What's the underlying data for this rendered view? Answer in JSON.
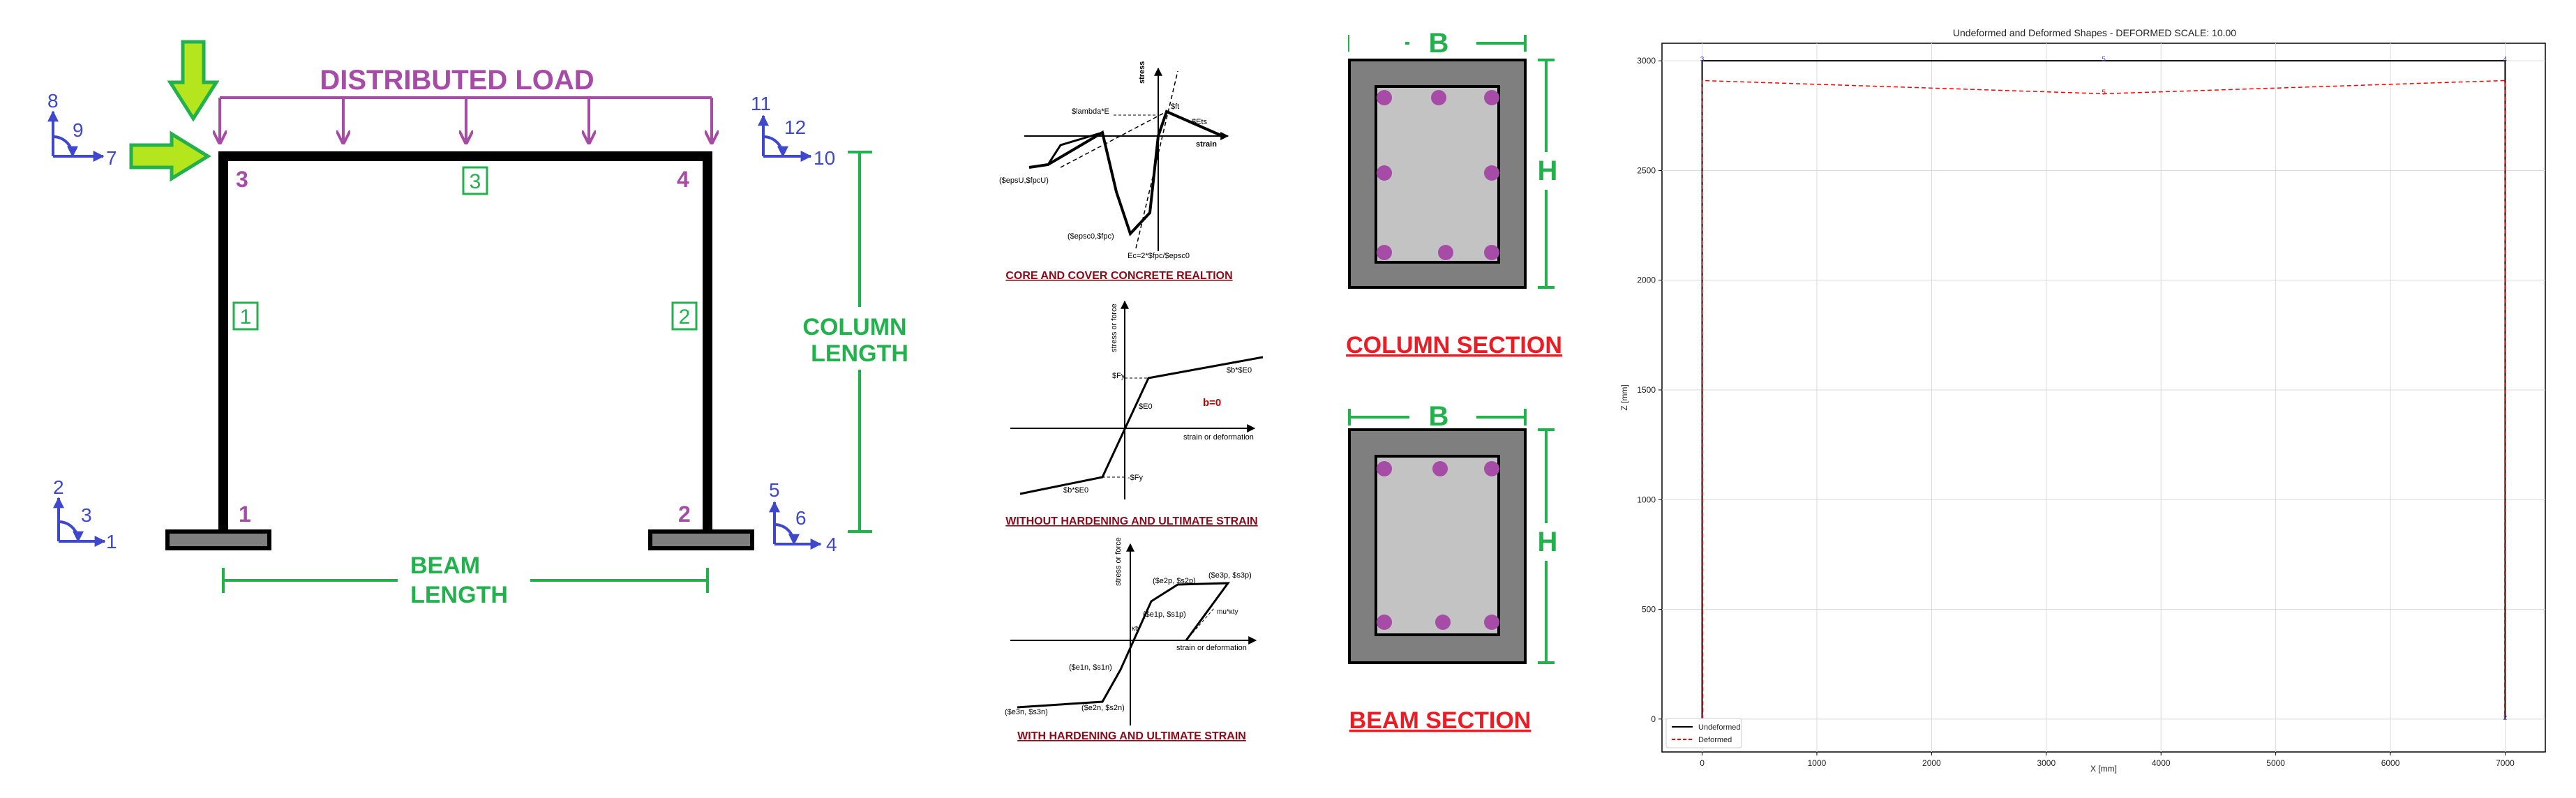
{
  "colors": {
    "purple": "#a64ca6",
    "green": "#22b14c",
    "blue": "#3f48cc",
    "red": "#c00000",
    "darkred": "#8b0a1a",
    "arrow_fill": "#b5e61d",
    "arrow_stroke": "#22b14c",
    "rebar": "#a64ca6",
    "cover": "#7f7f7f",
    "core": "#c3c3c3"
  },
  "frame": {
    "load_label": "DISTRIBUTED LOAD",
    "column_length_line1": "COLUMN",
    "column_length_line2": "LENGTH",
    "beam_length_line1": "BEAM",
    "beam_length_line2": "LENGTH",
    "nodes": [
      "1",
      "2",
      "3",
      "4"
    ],
    "elements": [
      "1",
      "2",
      "3"
    ],
    "dofs": {
      "n1": [
        "1",
        "2",
        "3"
      ],
      "n2": [
        "4",
        "5",
        "6"
      ],
      "n3": [
        "7",
        "8",
        "9"
      ],
      "n4": [
        "10",
        "11",
        "12"
      ]
    }
  },
  "materials": {
    "concrete": {
      "caption": "CORE AND COVER CONCRETE REALTION",
      "labels": {
        "stress": "stress",
        "strain": "strain",
        "lambda": "$lambda*E",
        "ft": "$ft",
        "ets": "$Ets",
        "epsu": "($epsU,$fpcU)",
        "epsc0": "($epsc0,$fpc)",
        "ec": "Ec=2*$fpc/$epsc0"
      }
    },
    "steel_nh": {
      "caption": "WITHOUT HARDENING AND ULTIMATE STRAIN",
      "labels": {
        "ylabel": "stress or force",
        "xlabel": "strain or deformation",
        "fy_pos": "$Fy",
        "fy_neg": "-$Fy",
        "e0": "$E0",
        "be0_top": "$b*$E0",
        "be0_bot": "$b*$E0",
        "b_eq": "b=0"
      }
    },
    "steel_h": {
      "caption": "WITH HARDENING AND ULTIMATE STRAIN",
      "labels": {
        "ylabel": "stress or force",
        "xlabel": "strain or deformation",
        "p1": "($e1p, $s1p)",
        "p2": "($e2p, $s2p)",
        "p3": "($e3p, $s3p)",
        "n1": "($e1n, $s1n)",
        "n2": "($e2n, $s2n)",
        "n3": "($e3n, $s3n)",
        "ky": "κty",
        "mu": "mu*κty"
      }
    }
  },
  "sections": {
    "column": {
      "b": "B",
      "h": "H",
      "title": "COLUMN SECTION"
    },
    "beam": {
      "b": "B",
      "h": "H",
      "title": "BEAM SECTION"
    }
  },
  "chart_data": {
    "type": "line",
    "title": "Undeformed and Deformed Shapes - DEFORMED SCALE: 10.00",
    "xlabel": "X [mm]",
    "ylabel": "Z [mm]",
    "xlim": [
      -350,
      7350
    ],
    "ylim": [
      -150,
      3080
    ],
    "x_ticks": [
      0,
      1000,
      2000,
      3000,
      4000,
      5000,
      6000,
      7000
    ],
    "y_ticks": [
      0,
      500,
      1000,
      1500,
      2000,
      2500,
      3000
    ],
    "x_tick_labels": [
      "0",
      "1000",
      "2000",
      "3000",
      "4000",
      "5000",
      "6000",
      "7000"
    ],
    "y_tick_labels": [
      "0",
      "500",
      "1000",
      "1500",
      "2000",
      "2500",
      "3000"
    ],
    "grid": true,
    "legend_position": "lower-left",
    "series": [
      {
        "name": "Undeformed",
        "color": "#000000",
        "style": "solid",
        "paths": [
          {
            "x": [
              0,
              0,
              7000,
              7000
            ],
            "y": [
              0,
              3000,
              3000,
              0
            ]
          }
        ]
      },
      {
        "name": "Deformed",
        "color": "#ff0000",
        "style": "dashed",
        "paths": [
          {
            "x": [
              5,
              0,
              3500,
              7000,
              6995
            ],
            "y": [
              0,
              2910,
              2850,
              2910,
              0
            ]
          }
        ]
      }
    ],
    "annotations": [
      {
        "text": "1",
        "x": 0,
        "y": 0,
        "color": "#3f48cc"
      },
      {
        "text": "2",
        "x": 7000,
        "y": 0,
        "color": "#3f48cc"
      },
      {
        "text": "3",
        "x": 0,
        "y": 3000,
        "color": "#3f48cc"
      },
      {
        "text": "4",
        "x": 7000,
        "y": 3000,
        "color": "#3f48cc"
      },
      {
        "text": "5",
        "x": 3500,
        "y": 3000,
        "color": "#3f48cc"
      },
      {
        "text": "5",
        "x": 3500,
        "y": 2850,
        "color": "#ff0000"
      }
    ]
  }
}
